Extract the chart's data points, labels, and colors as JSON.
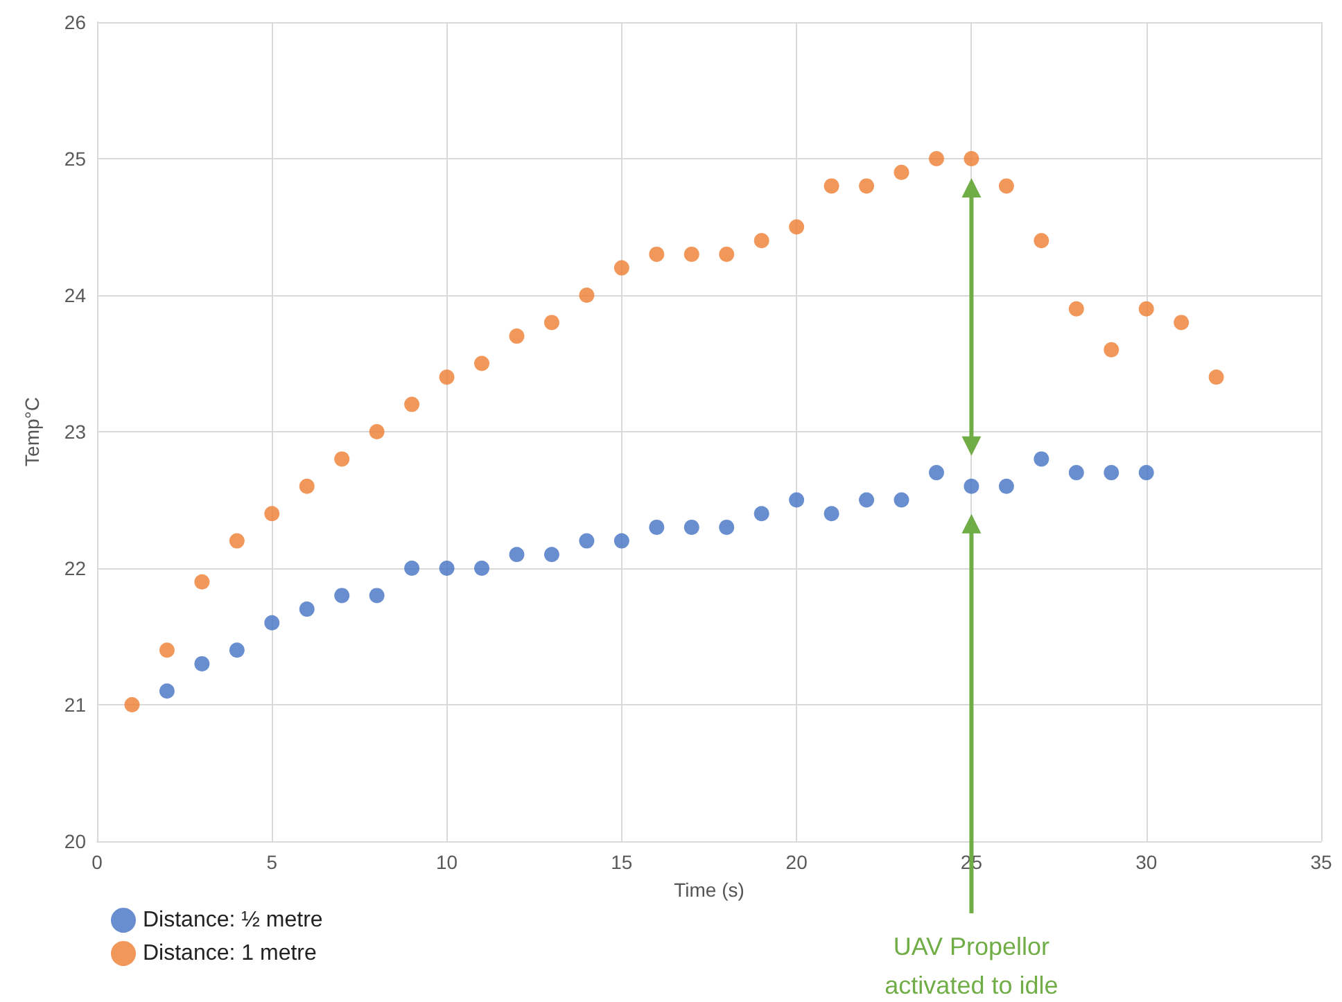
{
  "chart_data": {
    "type": "scatter",
    "xlabel": "Time (s)",
    "ylabel": "Temp°C",
    "xlim": [
      0,
      35
    ],
    "xticks": [
      0,
      5,
      10,
      15,
      20,
      25,
      30,
      35
    ],
    "ylim": [
      20,
      26
    ],
    "yticks": [
      20,
      21,
      22,
      23,
      24,
      25,
      26
    ],
    "grid": true,
    "legend": "bottom left",
    "marker": "circle",
    "series": [
      {
        "name": "Distance: ½ metre",
        "color": "#4472c4",
        "x": [
          2,
          3,
          4,
          5,
          6,
          7,
          8,
          9,
          10,
          11,
          12,
          13,
          14,
          15,
          16,
          17,
          18,
          19,
          20,
          21,
          22,
          23,
          24,
          25,
          26,
          27,
          28,
          29,
          30
        ],
        "values": [
          21.1,
          21.3,
          21.4,
          21.6,
          21.7,
          21.8,
          21.8,
          22.0,
          22.0,
          22.0,
          22.1,
          22.1,
          22.2,
          22.2,
          22.3,
          22.3,
          22.3,
          22.4,
          22.5,
          22.4,
          22.5,
          22.5,
          22.7,
          22.6,
          22.6,
          22.8,
          22.7,
          22.7,
          22.7
        ]
      },
      {
        "name": "Distance: 1 metre",
        "color": "#ed7d31",
        "x": [
          1,
          2,
          3,
          4,
          5,
          6,
          7,
          8,
          9,
          10,
          11,
          12,
          13,
          14,
          15,
          16,
          17,
          18,
          19,
          20,
          21,
          22,
          23,
          24,
          25,
          26,
          27,
          28,
          29,
          30,
          31,
          32
        ],
        "values": [
          21.0,
          21.4,
          21.9,
          22.2,
          22.4,
          22.6,
          22.8,
          23.0,
          23.2,
          23.4,
          23.5,
          23.7,
          23.8,
          24.0,
          24.2,
          24.3,
          24.3,
          24.3,
          24.4,
          24.5,
          24.8,
          24.8,
          24.9,
          25.0,
          25.0,
          24.8,
          24.4,
          23.9,
          23.6,
          23.9,
          23.8,
          23.4
        ]
      }
    ],
    "annotations": [
      "UAV Propellor activated to idle"
    ]
  }
}
